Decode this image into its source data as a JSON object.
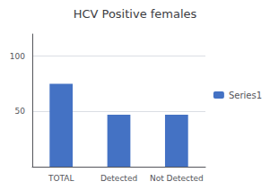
{
  "chart_data": {
    "type": "bar",
    "title": "HCV Positive females",
    "categories": [
      "TOTAL",
      "Detected",
      "Not Detected"
    ],
    "series": [
      {
        "name": "Series1",
        "color": "#4472C4",
        "values": [
          75,
          47,
          47
        ]
      }
    ],
    "ylim": [
      0,
      120
    ],
    "yticks": [
      50,
      100
    ],
    "grid": true,
    "legend": "right"
  }
}
